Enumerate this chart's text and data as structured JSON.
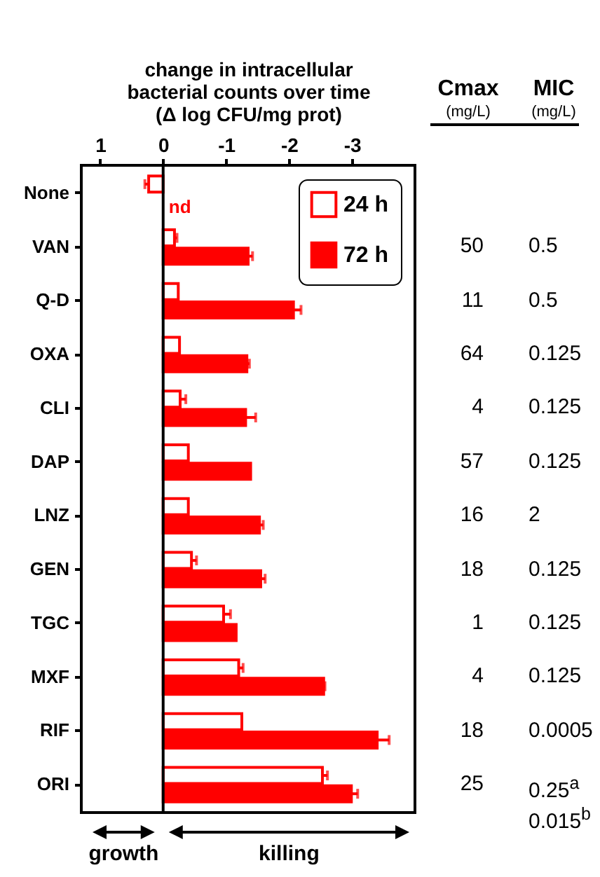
{
  "chart_data": [
    {
      "type": "bar",
      "orientation": "horizontal",
      "xlabel": "change in intracellular\nbacterial counts over time\n(Δ log CFU/mg prot)",
      "categories": [
        "None",
        "VAN",
        "Q-D",
        "OXA",
        "CLI",
        "DAP",
        "LNZ",
        "GEN",
        "TGC",
        "MXF",
        "RIF",
        "ORI"
      ],
      "series": [
        {
          "name": "24 h",
          "color": "#ff0000",
          "values": [
            0.23,
            -0.18,
            -0.24,
            -0.26,
            -0.27,
            -0.4,
            -0.4,
            -0.45,
            -0.96,
            -1.2,
            -1.25,
            -2.53
          ],
          "errors": [
            0.06,
            0.04,
            null,
            null,
            0.09,
            null,
            null,
            0.08,
            0.11,
            0.07,
            null,
            0.08
          ]
        },
        {
          "name": "72 h",
          "color": "#ff0000",
          "values": [
            null,
            -1.35,
            -2.07,
            -1.33,
            -1.31,
            -1.39,
            -1.53,
            -1.55,
            -1.16,
            -2.55,
            -3.4,
            -2.99
          ],
          "errors": [
            null,
            0.07,
            0.12,
            0.04,
            0.16,
            null,
            0.06,
            0.07,
            null,
            0.02,
            0.19,
            0.1
          ]
        }
      ],
      "xlim": [
        1.3,
        -4
      ],
      "xticks": [
        1,
        0,
        -1,
        -2,
        -3
      ],
      "legend": "top right",
      "ref_lines": [
        {
          "axis": "x",
          "value": 0
        }
      ],
      "annotations": [
        {
          "text": "nd",
          "x": 0,
          "y": "None"
        },
        "growth",
        "killing"
      ]
    },
    {
      "type": "other",
      "annotations": [
        "Cmax",
        "(mg/L)",
        "MIC",
        "(mg/L)",
        "50",
        "0.5",
        "11",
        "0.5",
        "64",
        "0.125",
        "4",
        "0.125",
        "57",
        "0.125",
        "16",
        "2",
        "18",
        "0.125",
        "1",
        "0.125",
        "4",
        "0.125",
        "18",
        "0.0005",
        "25",
        "0.25$^{a}$\n0.015$^{b}$"
      ]
    }
  ]
}
